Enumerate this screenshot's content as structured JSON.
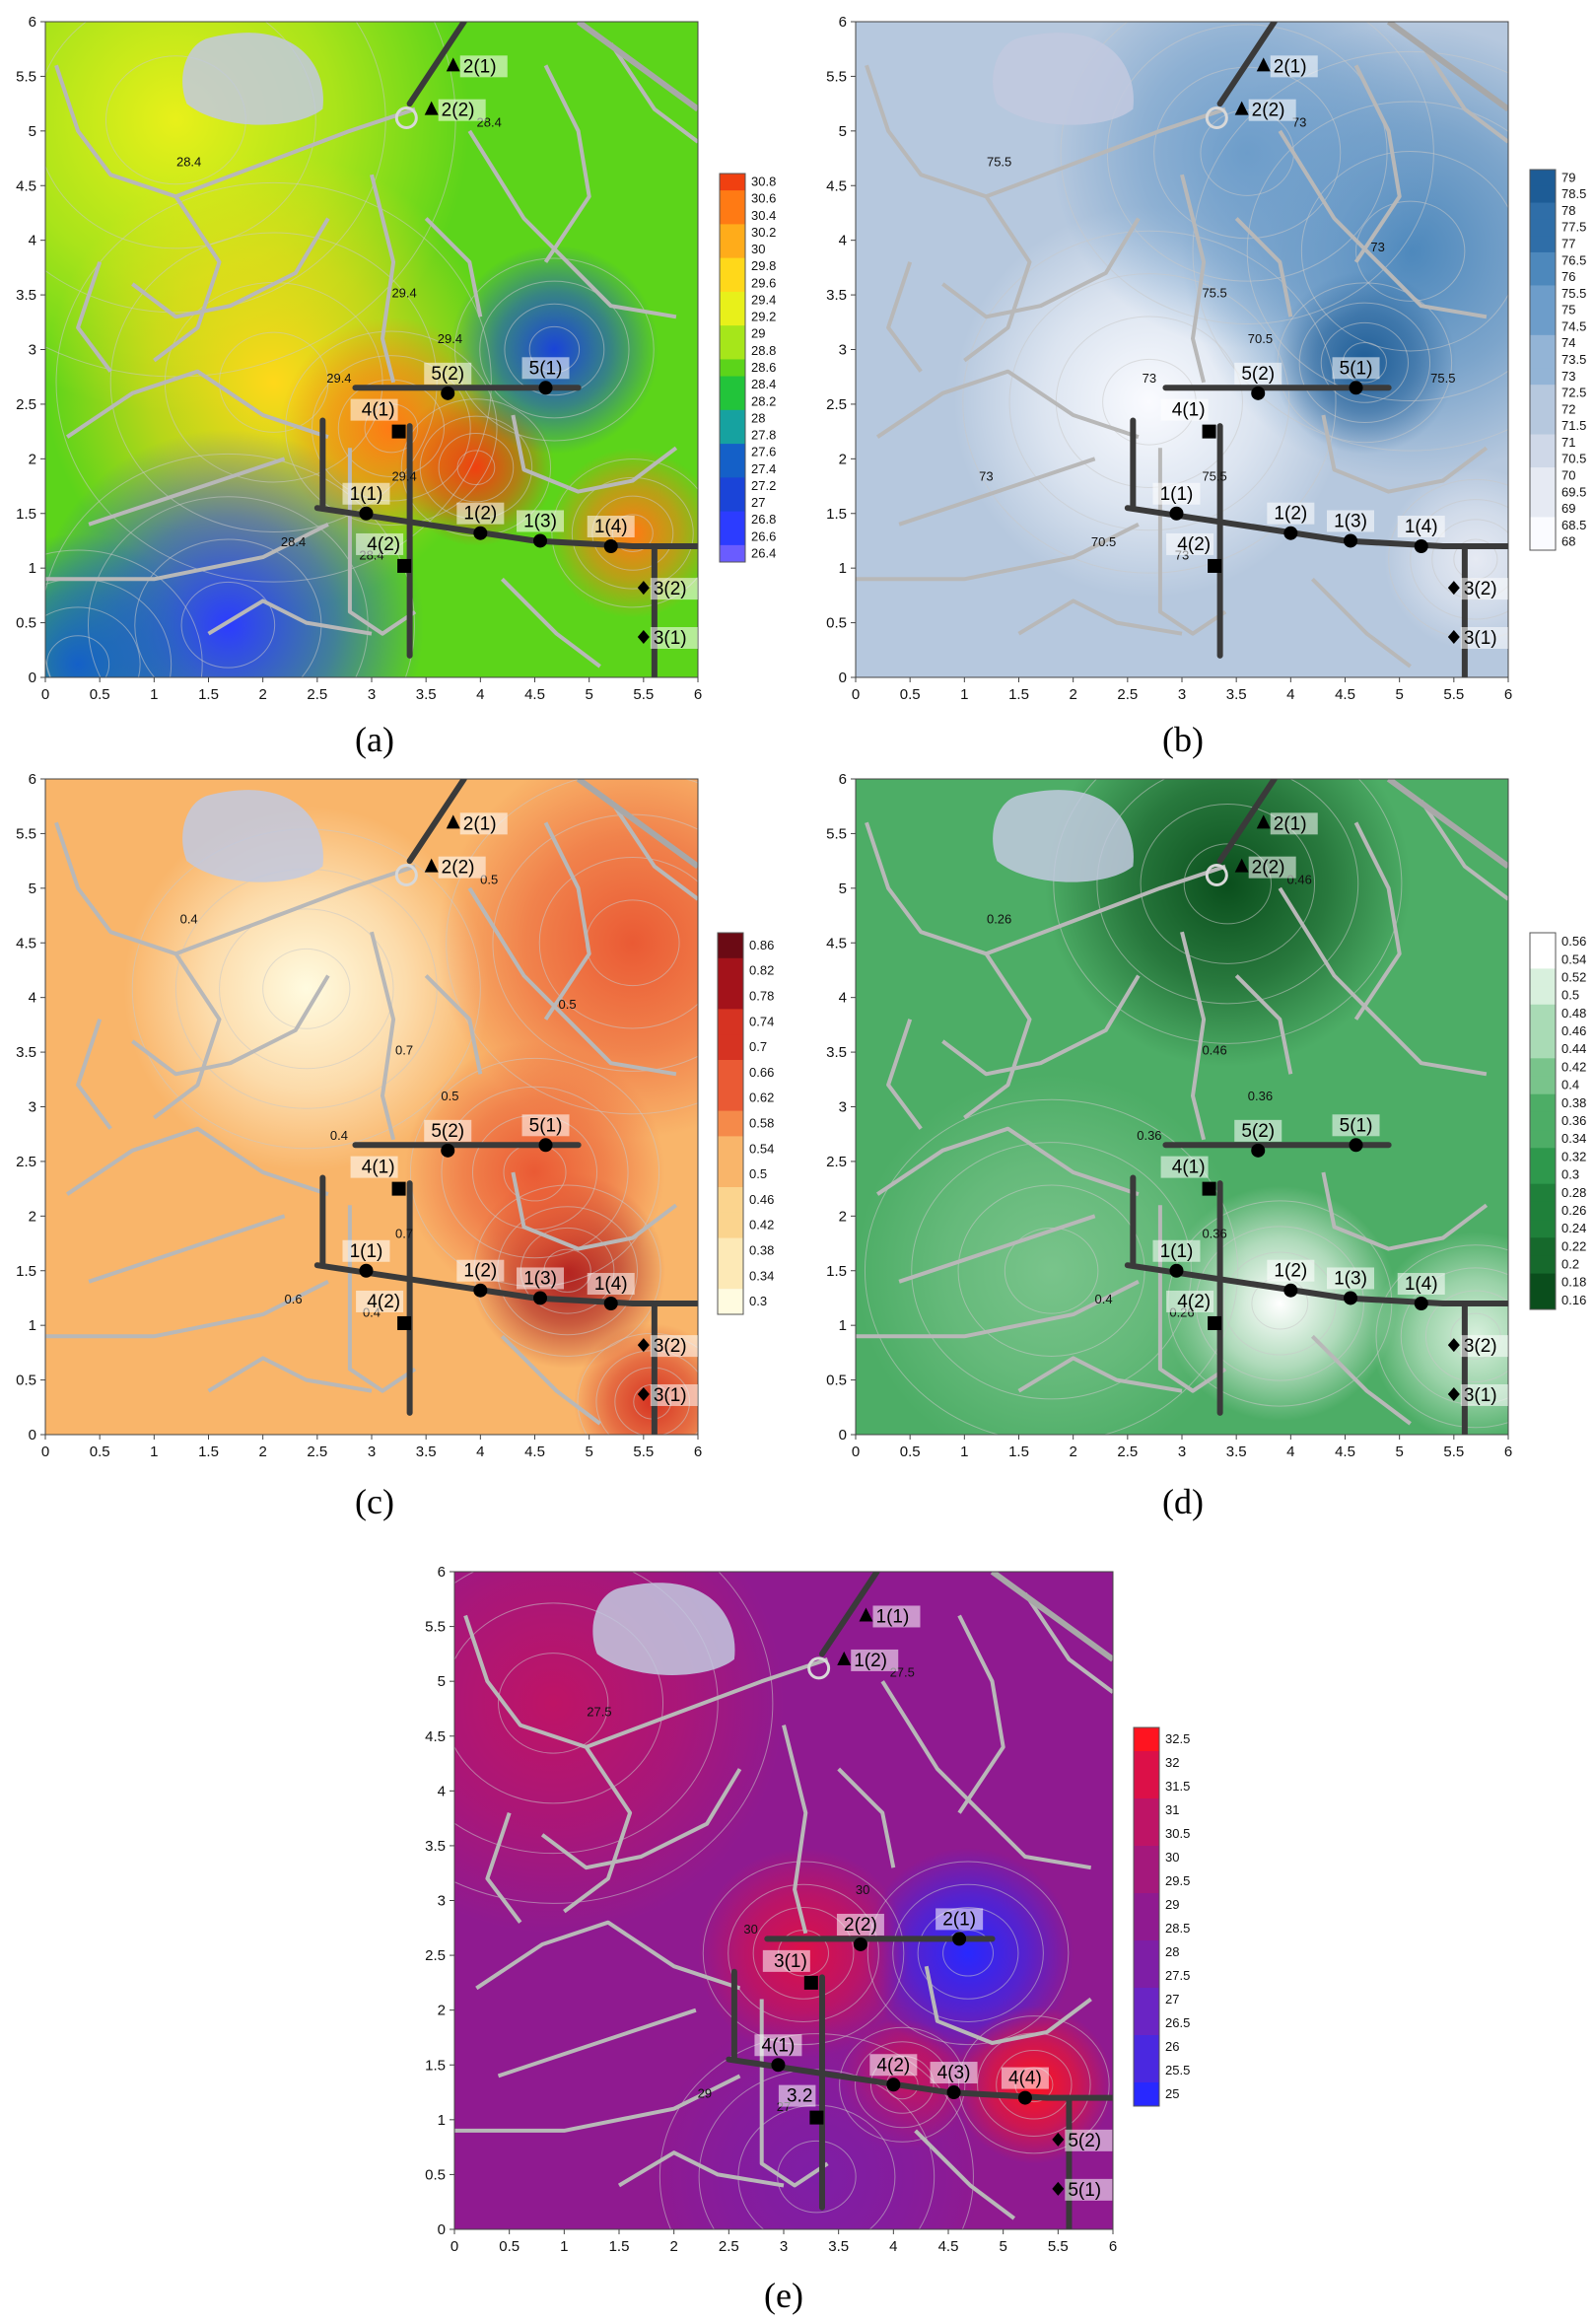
{
  "colors": {
    "a": [
      "#6a5cff",
      "#2c3cff",
      "#1a44d8",
      "#1460c8",
      "#16a2a0",
      "#22c43a",
      "#5cd41a",
      "#a6e61a",
      "#e8f01a",
      "#ffd81a",
      "#ffac1a",
      "#ff7a14",
      "#f04010"
    ],
    "b": [
      "#fafbff",
      "#e6eaf3",
      "#cfd8e8",
      "#b6c8de",
      "#93b4d6",
      "#6d9dca",
      "#4d88bc",
      "#2f6ea8",
      "#1d5c96"
    ],
    "c": [
      "#fffbe0",
      "#fde9b6",
      "#fbd48e",
      "#f9b56a",
      "#f58a4a",
      "#ea5a34",
      "#d63322",
      "#a3121a",
      "#6b0a14"
    ],
    "d": [
      "#0a4e1c",
      "#16692c",
      "#1f803a",
      "#2e984c",
      "#4dad66",
      "#79c48b",
      "#a9dbb5",
      "#d8f0dd",
      "#ffffff"
    ],
    "e": [
      "#2828ff",
      "#4a28e0",
      "#6a24c4",
      "#7e1ea6",
      "#8f1a90",
      "#a4187c",
      "#be1466",
      "#dc1048",
      "#ff1420"
    ],
    "road": "#b8b8b8",
    "lake": "#c2c9df"
  },
  "chart_data": [
    {
      "id": "a",
      "type": "heatmap",
      "caption": "(a)",
      "xticks": [
        "0",
        "0.5",
        "1",
        "1.5",
        "2",
        "2.5",
        "3",
        "3.5",
        "4",
        "4.5",
        "5",
        "5.5",
        "6"
      ],
      "yticks": [
        "0",
        "0.5",
        "1",
        "1.5",
        "2",
        "2.5",
        "3",
        "3.5",
        "4",
        "4.5",
        "5",
        "5.5",
        "6"
      ],
      "xlim": [
        0,
        6
      ],
      "ylim": [
        0,
        6
      ],
      "colorbar": [
        "30.8",
        "30.6",
        "30.4",
        "30.2",
        "30",
        "29.8",
        "29.6",
        "29.4",
        "29.2",
        "29",
        "28.8",
        "28.6",
        "28.4",
        "28.2",
        "28",
        "27.8",
        "27.6",
        "27.4",
        "27.2",
        "27",
        "26.8",
        "26.6",
        "26.4"
      ],
      "contour_labels": [
        "28.4",
        "28.4",
        "29.4",
        "29.4",
        "28.4",
        "28.4",
        "29.4",
        "29.4"
      ],
      "points": [
        {
          "label": "2(1)",
          "x": 3.75,
          "y": 5.6,
          "marker": "triangle"
        },
        {
          "label": "2(2)",
          "x": 3.55,
          "y": 5.2,
          "marker": "triangle"
        },
        {
          "label": "5(2)",
          "x": 3.7,
          "y": 2.6,
          "marker": "circle"
        },
        {
          "label": "5(1)",
          "x": 4.6,
          "y": 2.65,
          "marker": "circle"
        },
        {
          "label": "4(1)",
          "x": 3.25,
          "y": 2.25,
          "marker": "square"
        },
        {
          "label": "1(1)",
          "x": 2.95,
          "y": 1.5,
          "marker": "circle"
        },
        {
          "label": "1(2)",
          "x": 4.0,
          "y": 1.32,
          "marker": "circle"
        },
        {
          "label": "1(3)",
          "x": 4.55,
          "y": 1.25,
          "marker": "circle"
        },
        {
          "label": "1(4)",
          "x": 5.2,
          "y": 1.2,
          "marker": "circle"
        },
        {
          "label": "4(2)",
          "x": 3.3,
          "y": 1.02,
          "marker": "square"
        },
        {
          "label": "3(2)",
          "x": 5.5,
          "y": 0.82,
          "marker": "diamond"
        },
        {
          "label": "3(1)",
          "x": 5.5,
          "y": 0.37,
          "marker": "diamond"
        }
      ]
    },
    {
      "id": "b",
      "type": "heatmap",
      "caption": "(b)",
      "xticks": [
        "0",
        "0.5",
        "1",
        "1.5",
        "2",
        "2.5",
        "3",
        "3.5",
        "4",
        "4.5",
        "5",
        "5.5",
        "6"
      ],
      "yticks": [
        "0",
        "0.5",
        "1",
        "1.5",
        "2",
        "2.5",
        "3",
        "3.5",
        "4",
        "4.5",
        "5",
        "5.5",
        "6"
      ],
      "xlim": [
        0,
        6
      ],
      "ylim": [
        0,
        6
      ],
      "colorbar": [
        "79",
        "78.5",
        "78",
        "77.5",
        "77",
        "76.5",
        "76",
        "75.5",
        "75",
        "74.5",
        "74",
        "73.5",
        "73",
        "72.5",
        "72",
        "71.5",
        "71",
        "70.5",
        "70",
        "69.5",
        "69",
        "68.5",
        "68"
      ],
      "contour_labels": [
        "73",
        "75.5",
        "73",
        "70.5",
        "70.5",
        "73",
        "75.5",
        "75.5",
        "73",
        "75.5",
        "73"
      ],
      "points": [
        {
          "label": "2(1)",
          "x": 3.75,
          "y": 5.6,
          "marker": "triangle"
        },
        {
          "label": "2(2)",
          "x": 3.55,
          "y": 5.2,
          "marker": "triangle"
        },
        {
          "label": "5(2)",
          "x": 3.7,
          "y": 2.6,
          "marker": "circle"
        },
        {
          "label": "5(1)",
          "x": 4.6,
          "y": 2.65,
          "marker": "circle"
        },
        {
          "label": "4(1)",
          "x": 3.25,
          "y": 2.25,
          "marker": "square"
        },
        {
          "label": "1(1)",
          "x": 2.95,
          "y": 1.5,
          "marker": "circle"
        },
        {
          "label": "1(2)",
          "x": 4.0,
          "y": 1.32,
          "marker": "circle"
        },
        {
          "label": "1(3)",
          "x": 4.55,
          "y": 1.25,
          "marker": "circle"
        },
        {
          "label": "1(4)",
          "x": 5.2,
          "y": 1.2,
          "marker": "circle"
        },
        {
          "label": "4(2)",
          "x": 3.3,
          "y": 1.02,
          "marker": "square"
        },
        {
          "label": "3(2)",
          "x": 5.5,
          "y": 0.82,
          "marker": "diamond"
        },
        {
          "label": "3(1)",
          "x": 5.5,
          "y": 0.37,
          "marker": "diamond"
        }
      ]
    },
    {
      "id": "c",
      "type": "heatmap",
      "caption": "(c)",
      "xticks": [
        "0",
        "0.5",
        "1",
        "1.5",
        "2",
        "2.5",
        "3",
        "3.5",
        "4",
        "4.5",
        "5",
        "5.5",
        "6"
      ],
      "yticks": [
        "0",
        "0.5",
        "1",
        "1.5",
        "2",
        "2.5",
        "3",
        "3.5",
        "4",
        "4.5",
        "5",
        "5.5",
        "6"
      ],
      "xlim": [
        0,
        6
      ],
      "ylim": [
        0,
        6
      ],
      "colorbar": [
        "0.86",
        "0.82",
        "0.78",
        "0.74",
        "0.7",
        "0.66",
        "0.62",
        "0.58",
        "0.54",
        "0.5",
        "0.46",
        "0.42",
        "0.38",
        "0.34",
        "0.3"
      ],
      "contour_labels": [
        "0.4",
        "0.4",
        "0.4",
        "0.5",
        "0.6",
        "0.5",
        "0.7",
        "0.7",
        "0.5"
      ],
      "points": [
        {
          "label": "2(1)",
          "x": 3.75,
          "y": 5.6,
          "marker": "triangle"
        },
        {
          "label": "2(2)",
          "x": 3.55,
          "y": 5.2,
          "marker": "triangle"
        },
        {
          "label": "5(2)",
          "x": 3.7,
          "y": 2.6,
          "marker": "circle"
        },
        {
          "label": "5(1)",
          "x": 4.6,
          "y": 2.65,
          "marker": "circle"
        },
        {
          "label": "4(1)",
          "x": 3.25,
          "y": 2.25,
          "marker": "square"
        },
        {
          "label": "1(1)",
          "x": 2.95,
          "y": 1.5,
          "marker": "circle"
        },
        {
          "label": "1(2)",
          "x": 4.0,
          "y": 1.32,
          "marker": "circle"
        },
        {
          "label": "1(3)",
          "x": 4.55,
          "y": 1.25,
          "marker": "circle"
        },
        {
          "label": "1(4)",
          "x": 5.2,
          "y": 1.2,
          "marker": "circle"
        },
        {
          "label": "4(2)",
          "x": 3.3,
          "y": 1.02,
          "marker": "square"
        },
        {
          "label": "3(2)",
          "x": 5.5,
          "y": 0.82,
          "marker": "diamond"
        },
        {
          "label": "3(1)",
          "x": 5.5,
          "y": 0.37,
          "marker": "diamond"
        }
      ]
    },
    {
      "id": "d",
      "type": "heatmap",
      "caption": "(d)",
      "xticks": [
        "0",
        "0.5",
        "1",
        "1.5",
        "2",
        "2.5",
        "3",
        "3.5",
        "4",
        "4.5",
        "5",
        "5.5",
        "6"
      ],
      "yticks": [
        "0",
        "0.5",
        "1",
        "1.5",
        "2",
        "2.5",
        "3",
        "3.5",
        "4",
        "4.5",
        "5",
        "5.5",
        "6"
      ],
      "xlim": [
        0,
        6
      ],
      "ylim": [
        0,
        6
      ],
      "colorbar": [
        "0.56",
        "0.54",
        "0.52",
        "0.5",
        "0.48",
        "0.46",
        "0.44",
        "0.42",
        "0.4",
        "0.38",
        "0.36",
        "0.34",
        "0.32",
        "0.3",
        "0.28",
        "0.26",
        "0.24",
        "0.22",
        "0.2",
        "0.18",
        "0.16"
      ],
      "contour_labels": [
        "0.26",
        "0.26",
        "0.36",
        "0.36",
        "0.4",
        "0.46",
        "0.46",
        "0.36"
      ],
      "points": [
        {
          "label": "2(1)",
          "x": 3.75,
          "y": 5.6,
          "marker": "triangle"
        },
        {
          "label": "2(2)",
          "x": 3.55,
          "y": 5.2,
          "marker": "triangle"
        },
        {
          "label": "5(2)",
          "x": 3.7,
          "y": 2.6,
          "marker": "circle"
        },
        {
          "label": "5(1)",
          "x": 4.6,
          "y": 2.65,
          "marker": "circle"
        },
        {
          "label": "4(1)",
          "x": 3.25,
          "y": 2.25,
          "marker": "square"
        },
        {
          "label": "1(1)",
          "x": 2.95,
          "y": 1.5,
          "marker": "circle"
        },
        {
          "label": "1(2)",
          "x": 4.0,
          "y": 1.32,
          "marker": "circle"
        },
        {
          "label": "1(3)",
          "x": 4.55,
          "y": 1.25,
          "marker": "circle"
        },
        {
          "label": "1(4)",
          "x": 5.2,
          "y": 1.2,
          "marker": "circle"
        },
        {
          "label": "4(2)",
          "x": 3.3,
          "y": 1.02,
          "marker": "square"
        },
        {
          "label": "3(2)",
          "x": 5.5,
          "y": 0.82,
          "marker": "diamond"
        },
        {
          "label": "3(1)",
          "x": 5.5,
          "y": 0.37,
          "marker": "diamond"
        }
      ]
    },
    {
      "id": "e",
      "type": "heatmap",
      "caption": "(e)",
      "xticks": [
        "0",
        "0.5",
        "1",
        "1.5",
        "2",
        "2.5",
        "3",
        "3.5",
        "4",
        "4.5",
        "5",
        "5.5",
        "6"
      ],
      "yticks": [
        "0",
        "0.5",
        "1",
        "1.5",
        "2",
        "2.5",
        "3",
        "3.5",
        "4",
        "4.5",
        "5",
        "5.5",
        "6"
      ],
      "xlim": [
        0,
        6
      ],
      "ylim": [
        0,
        6
      ],
      "colorbar": [
        "32.5",
        "32",
        "31.5",
        "31",
        "30.5",
        "30",
        "29.5",
        "29",
        "28.5",
        "28",
        "27.5",
        "27",
        "26.5",
        "26",
        "25.5",
        "25"
      ],
      "contour_labels": [
        "27",
        "27.5",
        "30",
        "30",
        "29",
        "27.5"
      ],
      "points": [
        {
          "label": "1(1)",
          "x": 3.75,
          "y": 5.6,
          "marker": "triangle"
        },
        {
          "label": "1(2)",
          "x": 3.55,
          "y": 5.2,
          "marker": "triangle"
        },
        {
          "label": "2(2)",
          "x": 3.7,
          "y": 2.6,
          "marker": "circle"
        },
        {
          "label": "2(1)",
          "x": 4.6,
          "y": 2.65,
          "marker": "circle"
        },
        {
          "label": "3(1)",
          "x": 3.25,
          "y": 2.25,
          "marker": "square"
        },
        {
          "label": "4(1)",
          "x": 2.95,
          "y": 1.5,
          "marker": "circle"
        },
        {
          "label": "4(2)",
          "x": 4.0,
          "y": 1.32,
          "marker": "circle"
        },
        {
          "label": "4(3)",
          "x": 4.55,
          "y": 1.25,
          "marker": "circle"
        },
        {
          "label": "4(4)",
          "x": 5.2,
          "y": 1.2,
          "marker": "circle"
        },
        {
          "label": "3.2",
          "x": 3.3,
          "y": 1.02,
          "marker": "square"
        },
        {
          "label": "5(2)",
          "x": 5.5,
          "y": 0.82,
          "marker": "diamond"
        },
        {
          "label": "5(1)",
          "x": 5.5,
          "y": 0.37,
          "marker": "diamond"
        }
      ]
    }
  ]
}
